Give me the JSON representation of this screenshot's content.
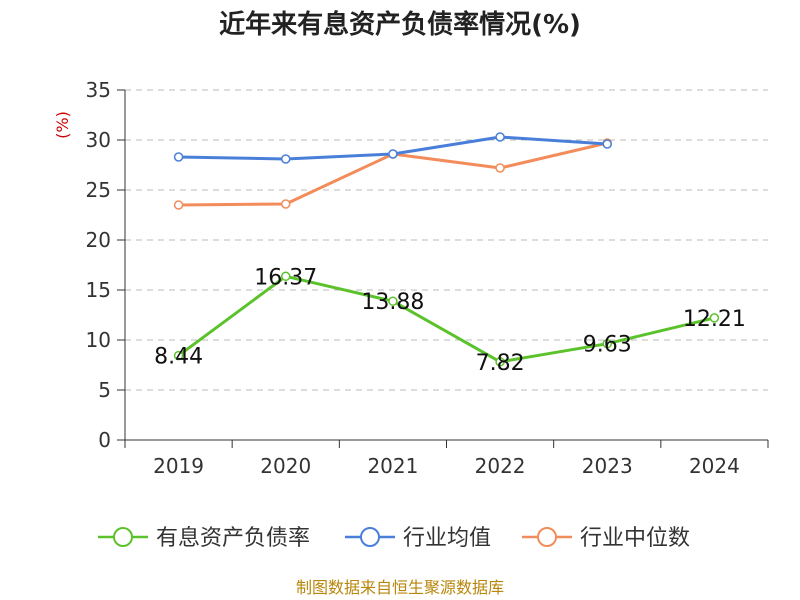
{
  "chart_data": {
    "type": "line",
    "title": "近年来有息资产负债率情况(%)",
    "ylabel": "(%)",
    "categories": [
      "2019",
      "2020",
      "2021",
      "2022",
      "2023",
      "2024"
    ],
    "ylim": [
      0,
      35
    ],
    "yticks": [
      0,
      5,
      10,
      15,
      20,
      25,
      30,
      35
    ],
    "grid": true,
    "legend_position": "bottom",
    "series": [
      {
        "name": "有息资产负债率",
        "color": "#5cc22c",
        "values": [
          8.44,
          16.37,
          13.88,
          7.82,
          9.63,
          12.21
        ],
        "labels": [
          "8.44",
          "16.37",
          "13.88",
          "7.82",
          "9.63",
          "12.21"
        ]
      },
      {
        "name": "行业均值",
        "color": "#4a7fd9",
        "values": [
          28.3,
          28.1,
          28.6,
          30.3,
          29.6,
          null
        ]
      },
      {
        "name": "行业中位数",
        "color": "#f28c5a",
        "values": [
          23.5,
          23.6,
          28.6,
          27.2,
          29.7,
          null
        ]
      }
    ]
  },
  "footer": {
    "source": "制图数据来自恒生聚源数据库"
  }
}
